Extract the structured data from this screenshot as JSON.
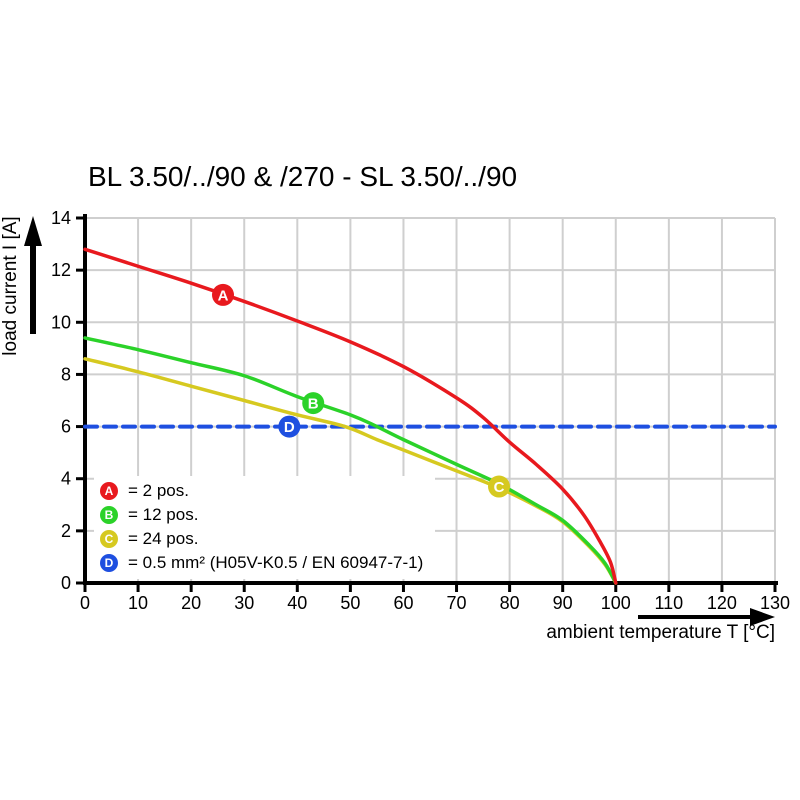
{
  "legend": {
    "items": [
      {
        "key": "A",
        "label": "= 2 pos."
      },
      {
        "key": "B",
        "label": "= 12 pos."
      },
      {
        "key": "C",
        "label": "= 24 pos."
      },
      {
        "key": "D",
        "label": "= 0.5 mm² (H05V-K0.5 / EN 60947-7-1)"
      }
    ]
  },
  "chart_data": {
    "type": "line",
    "title": "BL 3.50/../90 & /270 - SL 3.50/../90",
    "xlabel": "ambient temperature T [°C]",
    "ylabel": "load current I [A]",
    "xlim": [
      0,
      130
    ],
    "ylim": [
      0,
      14
    ],
    "xticks": [
      0,
      10,
      20,
      30,
      40,
      50,
      60,
      70,
      80,
      90,
      100,
      110,
      120,
      130
    ],
    "yticks": [
      0,
      2,
      4,
      6,
      8,
      10,
      12,
      14
    ],
    "grid": true,
    "legend_position": "lower-left",
    "colors": {
      "grid": "#cfcfcf",
      "axis": "#000000",
      "background": "#ffffff"
    },
    "series": [
      {
        "name": "A",
        "label": "2 pos.",
        "color": "#e8191e",
        "style": "solid",
        "points": [
          [
            0,
            12.8
          ],
          [
            10,
            12.15
          ],
          [
            20,
            11.5
          ],
          [
            30,
            10.8
          ],
          [
            40,
            10.05
          ],
          [
            50,
            9.25
          ],
          [
            60,
            8.3
          ],
          [
            70,
            7.1
          ],
          [
            75,
            6.35
          ],
          [
            80,
            5.4
          ],
          [
            85,
            4.55
          ],
          [
            90,
            3.6
          ],
          [
            94,
            2.6
          ],
          [
            97,
            1.6
          ],
          [
            99,
            0.8
          ],
          [
            100,
            0
          ]
        ]
      },
      {
        "name": "B",
        "label": "12 pos.",
        "color": "#2bd229",
        "style": "solid",
        "points": [
          [
            0,
            9.4
          ],
          [
            10,
            8.95
          ],
          [
            20,
            8.45
          ],
          [
            30,
            7.95
          ],
          [
            40,
            7.15
          ],
          [
            50,
            6.45
          ],
          [
            55,
            6.0
          ],
          [
            60,
            5.5
          ],
          [
            70,
            4.55
          ],
          [
            78,
            3.8
          ],
          [
            85,
            3.0
          ],
          [
            90,
            2.4
          ],
          [
            95,
            1.45
          ],
          [
            98,
            0.75
          ],
          [
            100,
            0
          ]
        ]
      },
      {
        "name": "C",
        "label": "24 pos.",
        "color": "#d6c920",
        "style": "solid",
        "points": [
          [
            0,
            8.6
          ],
          [
            10,
            8.1
          ],
          [
            20,
            7.55
          ],
          [
            30,
            7.0
          ],
          [
            40,
            6.45
          ],
          [
            49,
            6.0
          ],
          [
            55,
            5.5
          ],
          [
            60,
            5.1
          ],
          [
            70,
            4.3
          ],
          [
            78,
            3.65
          ],
          [
            85,
            2.95
          ],
          [
            90,
            2.35
          ],
          [
            95,
            1.4
          ],
          [
            98,
            0.7
          ],
          [
            100,
            0
          ]
        ]
      },
      {
        "name": "D",
        "label": "0.5 mm² (H05V-K0.5 / EN 60947-7-1)",
        "color": "#1e4fe0",
        "style": "dashed",
        "points": [
          [
            0,
            6
          ],
          [
            130,
            6
          ]
        ]
      }
    ],
    "markers": [
      {
        "label": "A",
        "x": 26,
        "y": 11.05,
        "color": "#e8191e"
      },
      {
        "label": "B",
        "x": 43,
        "y": 6.9,
        "color": "#2bd229"
      },
      {
        "label": "C",
        "x": 78,
        "y": 3.7,
        "color": "#d6c920"
      },
      {
        "label": "D",
        "x": 38.5,
        "y": 6.0,
        "color": "#1e4fe0"
      }
    ]
  }
}
